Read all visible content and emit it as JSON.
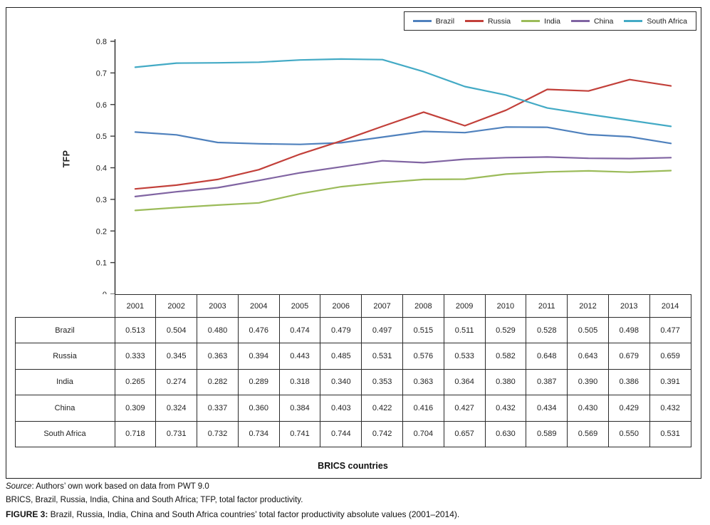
{
  "chart_data": {
    "type": "line",
    "title": "",
    "ylabel": "TFP",
    "xlabel": "BRICS countries",
    "ylim": [
      0,
      0.8
    ],
    "y_tick_labels": [
      "0",
      "0.1",
      "0.2",
      "0.3",
      "0.4",
      "0.5",
      "0.6",
      "0.7",
      "0.8"
    ],
    "grid": false,
    "legend_position": "top-right",
    "categories": [
      "2001",
      "2002",
      "2003",
      "2004",
      "2005",
      "2006",
      "2007",
      "2008",
      "2009",
      "2010",
      "2011",
      "2012",
      "2013",
      "2014"
    ],
    "series": [
      {
        "name": "Brazil",
        "color": "#4f81bd",
        "values": [
          0.513,
          0.504,
          0.48,
          0.476,
          0.474,
          0.479,
          0.497,
          0.515,
          0.511,
          0.529,
          0.528,
          0.505,
          0.498,
          0.477
        ]
      },
      {
        "name": "Russia",
        "color": "#c2403a",
        "values": [
          0.333,
          0.345,
          0.363,
          0.394,
          0.443,
          0.485,
          0.531,
          0.576,
          0.533,
          0.582,
          0.648,
          0.643,
          0.679,
          0.659
        ]
      },
      {
        "name": "India",
        "color": "#9bbb59",
        "values": [
          0.265,
          0.274,
          0.282,
          0.289,
          0.318,
          0.34,
          0.353,
          0.363,
          0.364,
          0.38,
          0.387,
          0.39,
          0.386,
          0.391
        ]
      },
      {
        "name": "China",
        "color": "#8064a2",
        "values": [
          0.309,
          0.324,
          0.337,
          0.36,
          0.384,
          0.403,
          0.422,
          0.416,
          0.427,
          0.432,
          0.434,
          0.43,
          0.429,
          0.432
        ]
      },
      {
        "name": "South Africa",
        "color": "#43aac5",
        "values": [
          0.718,
          0.731,
          0.732,
          0.734,
          0.741,
          0.744,
          0.742,
          0.704,
          0.657,
          0.63,
          0.589,
          0.569,
          0.55,
          0.531
        ]
      }
    ],
    "value_decimals": 3
  },
  "caption": {
    "source_word": "Source",
    "source_rest": ": Authors’ own work based on data from PWT 9.0",
    "abbreviations": "BRICS, Brazil, Russia, India, China and South Africa; TFP, total factor productivity.",
    "figure_label": "FIGURE 3:",
    "figure_text": " Brazil, Russia, India, China and South Africa countries’ total factor productivity absolute values (2001–2014)."
  }
}
